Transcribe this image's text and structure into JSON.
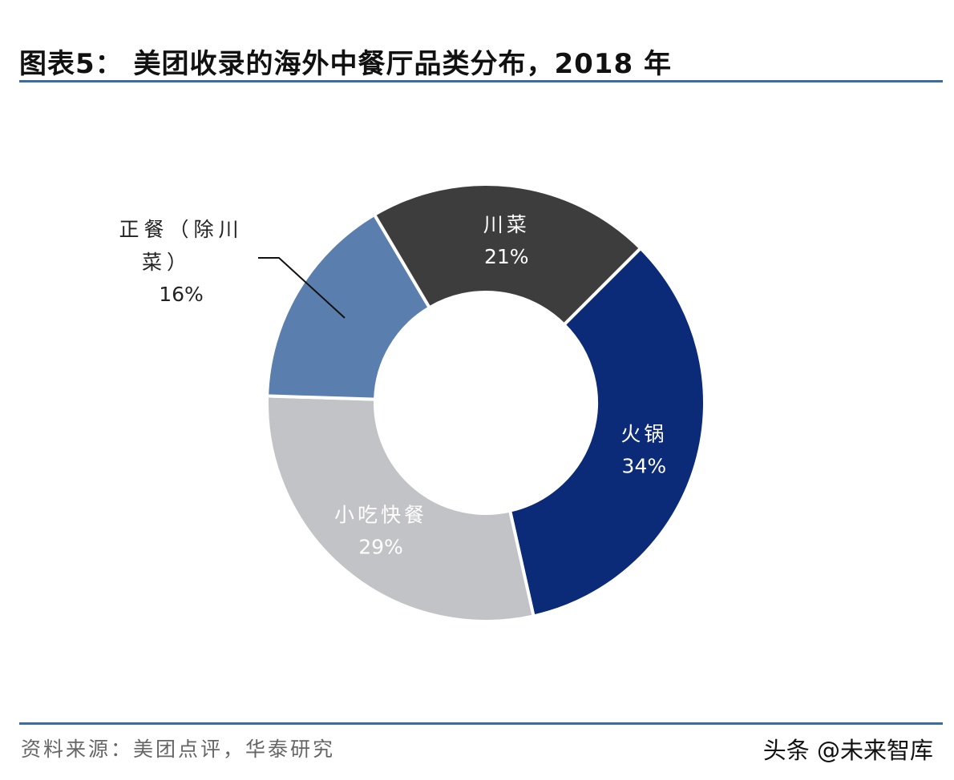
{
  "title": "图表5： 美团收录的海外中餐厅品类分布，2018 年",
  "source": "资料来源：美团点评，华泰研究",
  "watermark": "头条 @未来智库",
  "chart_data": {
    "type": "pie",
    "donut": true,
    "title": "图表5： 美团收录的海外中餐厅品类分布，2018 年",
    "unit": "%",
    "slices": [
      {
        "name": "火锅",
        "value": 34,
        "label": "34%",
        "color": "#0b2b78"
      },
      {
        "name": "小吃快餐",
        "value": 29,
        "label": "29%",
        "color": "#c2c3c6"
      },
      {
        "name": "正餐（除川菜）",
        "value": 16,
        "label": "16%",
        "color": "#5a7faf",
        "label_lines": [
          "正餐（除川",
          "菜）"
        ]
      },
      {
        "name": "川菜",
        "value": 21,
        "label": "21%",
        "color": "#3d3d3d"
      }
    ]
  }
}
